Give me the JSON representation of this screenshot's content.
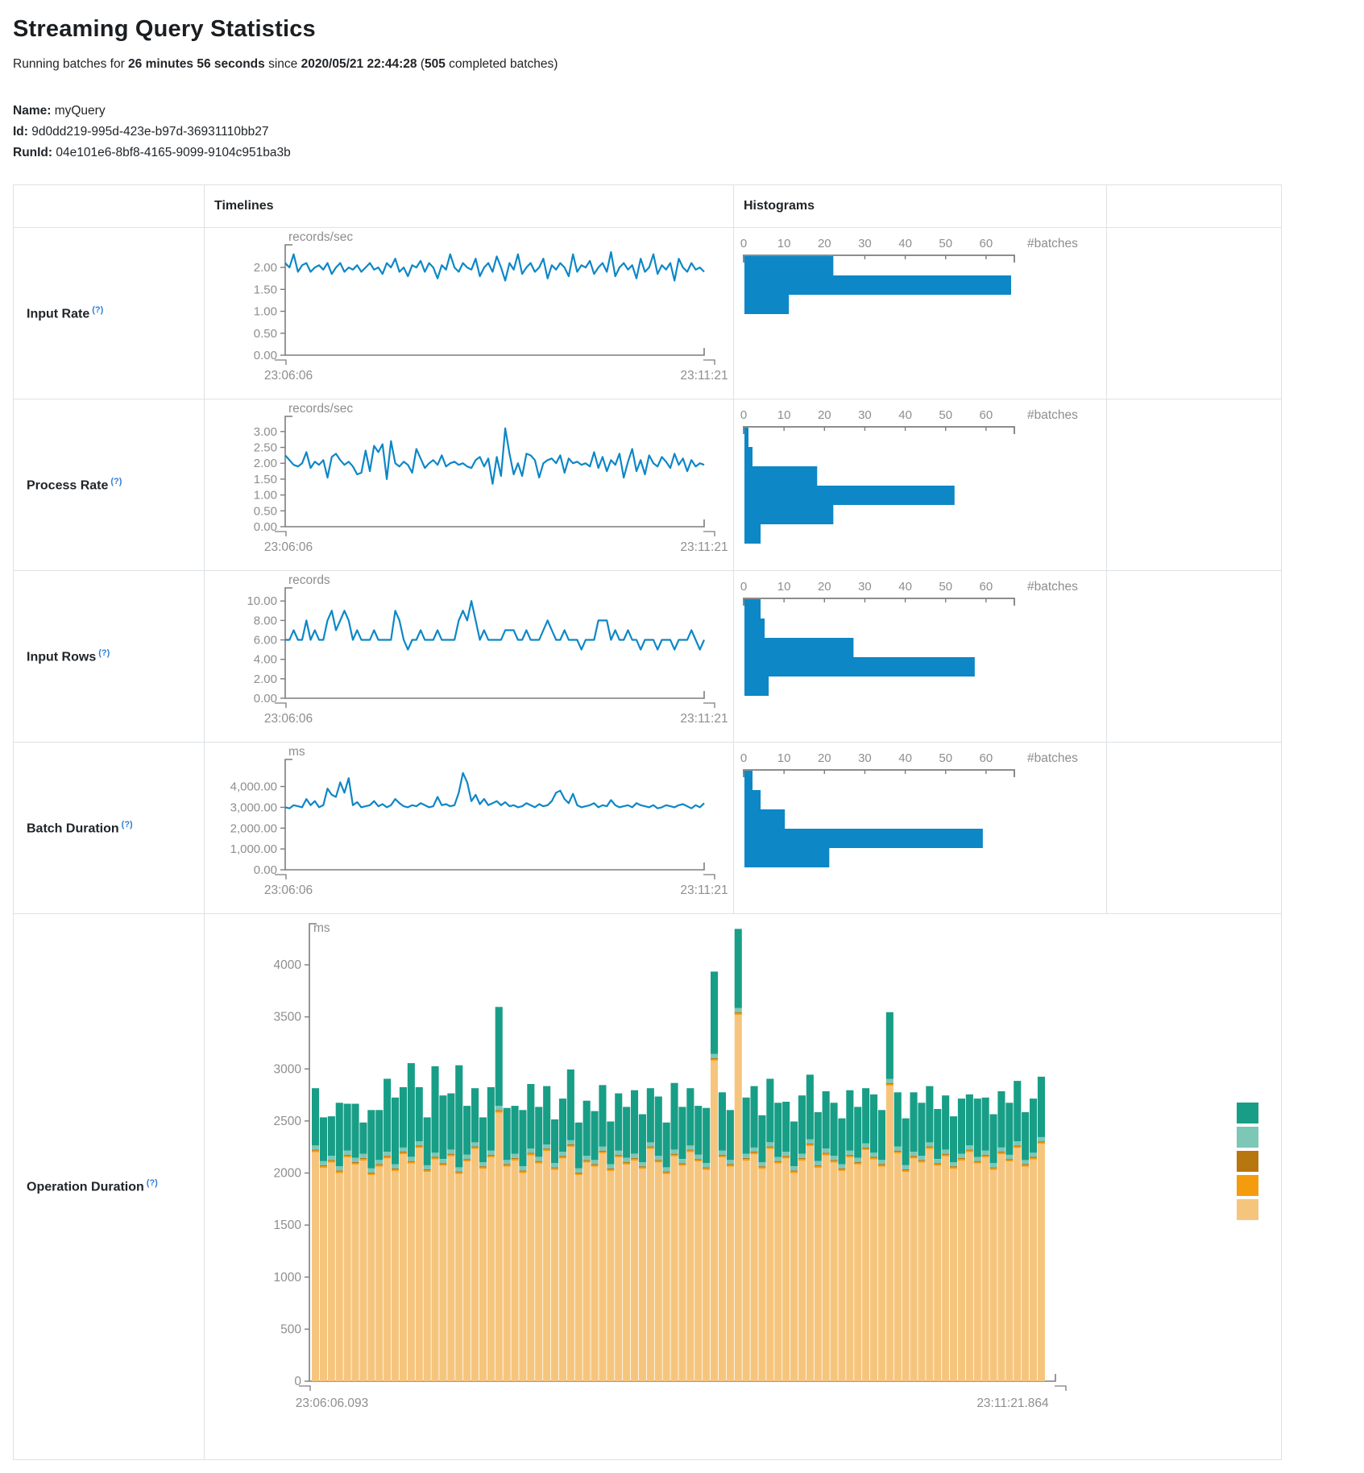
{
  "page": {
    "title": "Streaming Query Statistics",
    "running_prefix": "Running batches for ",
    "duration": "26 minutes 56 seconds",
    "since_text": " since ",
    "start_time": "2020/05/21 22:44:28",
    "batches_open": " (",
    "batches_count": "505",
    "batches_suffix": " completed batches)",
    "name_label": "Name:",
    "name_value": "myQuery",
    "id_label": "Id:",
    "id_value": "9d0dd219-995d-423e-b97d-36931110bb27",
    "runid_label": "RunId:",
    "runid_value": "04e101e6-8bf8-4165-9099-9104c951ba3b"
  },
  "table": {
    "header_timelines": "Timelines",
    "header_histograms": "Histograms",
    "help_marker": "(?)"
  },
  "colors": {
    "line_blue": "#0d87c6",
    "hist_blue": "#0d87c6",
    "axis": "#7d7d7d",
    "tick_text": "#8e8e8e",
    "border": "#dee2e6",
    "teal": "#189e86",
    "light_teal": "#7cc7b6",
    "dark_orange": "#b8760f",
    "orange": "#f49c0d",
    "tan": "#f6c57d"
  },
  "chart_data": [
    {
      "label": "Input Rate",
      "type": "line",
      "timeline": {
        "unit": "records/sec",
        "ymax": 2.35,
        "ytick_values": [
          0,
          0.5,
          1,
          1.5,
          2
        ],
        "ytick_labels": [
          "0.00",
          "0.50",
          "1.00",
          "1.50",
          "2.00"
        ],
        "x_start": "23:06:06",
        "x_end": "23:11:21",
        "values": [
          2.1,
          2.0,
          2.3,
          1.9,
          2.05,
          2.1,
          1.9,
          2.0,
          2.05,
          1.95,
          2.1,
          1.85,
          2.0,
          2.1,
          1.9,
          2.0,
          1.95,
          2.05,
          1.9,
          2.0,
          2.1,
          1.95,
          2.0,
          1.85,
          2.1,
          2.0,
          2.2,
          1.9,
          2.0,
          1.8,
          2.05,
          2.0,
          2.15,
          1.9,
          2.1,
          2.0,
          1.75,
          2.05,
          1.95,
          2.3,
          2.0,
          1.9,
          2.1,
          2.0,
          1.95,
          2.2,
          1.8,
          2.0,
          2.1,
          1.9,
          2.25,
          2.0,
          1.7,
          2.1,
          1.95,
          2.3,
          1.85,
          2.0,
          2.1,
          1.9,
          2.0,
          2.2,
          1.75,
          2.05,
          1.95,
          2.1,
          2.0,
          1.8,
          2.3,
          1.9,
          2.05,
          2.0,
          2.15,
          1.85,
          2.0,
          2.1,
          1.9,
          2.35,
          1.8,
          2.0,
          2.1,
          1.95,
          2.05,
          1.75,
          2.2,
          1.9,
          2.0,
          2.3,
          1.85,
          2.05,
          1.95,
          2.1,
          1.7,
          2.2,
          2.0,
          1.9,
          2.1,
          1.95,
          2.0,
          1.9
        ]
      },
      "histogram": {
        "xlabel": "#batches",
        "xmax": 67,
        "xticks": [
          0,
          10,
          20,
          30,
          40,
          50,
          60
        ],
        "counts": [
          22,
          66,
          11
        ]
      }
    },
    {
      "label": "Process Rate",
      "type": "line",
      "timeline": {
        "unit": "records/sec",
        "ymax": 3.25,
        "ytick_values": [
          0,
          0.5,
          1,
          1.5,
          2,
          2.5,
          3
        ],
        "ytick_labels": [
          "0.00",
          "0.50",
          "1.00",
          "1.50",
          "2.00",
          "2.50",
          "3.00"
        ],
        "x_start": "23:06:06",
        "x_end": "23:11:21",
        "values": [
          2.25,
          2.1,
          1.95,
          1.9,
          2.0,
          2.35,
          1.85,
          2.05,
          1.95,
          2.1,
          1.55,
          2.2,
          2.3,
          2.1,
          1.95,
          2.05,
          1.9,
          1.65,
          1.7,
          2.4,
          1.75,
          2.55,
          2.35,
          2.6,
          1.5,
          2.7,
          2.0,
          1.9,
          2.05,
          1.95,
          1.7,
          2.45,
          2.15,
          1.85,
          2.0,
          2.1,
          1.95,
          2.25,
          1.9,
          2.0,
          2.05,
          1.95,
          2.0,
          1.9,
          1.85,
          2.1,
          2.2,
          1.9,
          2.15,
          1.35,
          2.2,
          1.6,
          3.1,
          2.3,
          1.65,
          2.0,
          1.6,
          2.3,
          2.25,
          2.1,
          1.55,
          2.0,
          2.1,
          2.15,
          2.0,
          2.25,
          1.7,
          2.15,
          2.0,
          2.05,
          1.95,
          2.0,
          1.9,
          2.35,
          1.85,
          2.2,
          1.75,
          2.1,
          1.95,
          2.3,
          1.55,
          2.05,
          2.45,
          1.75,
          2.1,
          1.65,
          2.25,
          2.0,
          1.9,
          2.2,
          2.05,
          1.85,
          2.3,
          1.95,
          2.15,
          1.75,
          2.1,
          1.9,
          2.0,
          1.95
        ]
      },
      "histogram": {
        "xlabel": "#batches",
        "xmax": 67,
        "xticks": [
          0,
          10,
          20,
          30,
          40,
          50,
          60
        ],
        "counts": [
          1,
          2,
          18,
          52,
          22,
          4
        ]
      }
    },
    {
      "label": "Input Rows",
      "type": "line",
      "timeline": {
        "unit": "records",
        "ymax": 10.6,
        "ytick_values": [
          0,
          2,
          4,
          6,
          8,
          10
        ],
        "ytick_labels": [
          "0.00",
          "2.00",
          "4.00",
          "6.00",
          "8.00",
          "10.00"
        ],
        "x_start": "23:06:06",
        "x_end": "23:11:21",
        "values": [
          6,
          6,
          7,
          6,
          6,
          8,
          6,
          7,
          6,
          6,
          8,
          9,
          7,
          8,
          9,
          8,
          6,
          7,
          6,
          6,
          6,
          7,
          6,
          6,
          6,
          6,
          9,
          8,
          6,
          5,
          6,
          6,
          7,
          6,
          6,
          6,
          7,
          6,
          6,
          6,
          6,
          8,
          9,
          8,
          10,
          8,
          6,
          7,
          6,
          6,
          6,
          6,
          7,
          7,
          7,
          6,
          6,
          7,
          6,
          6,
          6,
          7,
          8,
          7,
          6,
          6,
          7,
          6,
          6,
          6,
          5,
          6,
          6,
          6,
          8,
          8,
          8,
          6,
          7,
          6,
          6,
          7,
          6,
          6,
          5,
          6,
          6,
          6,
          5,
          6,
          6,
          6,
          5,
          6,
          6,
          6,
          7,
          6,
          5,
          6
        ]
      },
      "histogram": {
        "xlabel": "#batches",
        "xmax": 67,
        "xticks": [
          0,
          10,
          20,
          30,
          40,
          50,
          60
        ],
        "counts": [
          4,
          5,
          27,
          57,
          6
        ]
      }
    },
    {
      "label": "Batch Duration",
      "type": "line",
      "timeline": {
        "unit": "ms",
        "ymax": 4950,
        "ytick_values": [
          0,
          1000,
          2000,
          3000,
          4000
        ],
        "ytick_labels": [
          "0.00",
          "1,000.00",
          "2,000.00",
          "3,000.00",
          "4,000.00"
        ],
        "x_start": "23:06:06",
        "x_end": "23:11:21",
        "values": [
          3000,
          2950,
          3100,
          3050,
          3000,
          3400,
          3100,
          3300,
          3000,
          3100,
          3900,
          3600,
          3500,
          4200,
          3700,
          4400,
          3100,
          3250,
          3000,
          3050,
          3100,
          3300,
          3050,
          3150,
          3000,
          3100,
          3400,
          3200,
          3050,
          3000,
          3100,
          3050,
          3200,
          3100,
          3000,
          3050,
          3500,
          3100,
          3150,
          3050,
          3100,
          3700,
          4650,
          4200,
          3300,
          3600,
          3150,
          3400,
          3100,
          3200,
          3300,
          3100,
          3250,
          3050,
          3100,
          3000,
          3050,
          3200,
          3100,
          3000,
          3150,
          3050,
          3100,
          3300,
          3700,
          3800,
          3400,
          3200,
          3650,
          3100,
          3000,
          3050,
          3100,
          3200,
          3000,
          3100,
          3050,
          3350,
          3100,
          3000,
          3050,
          3100,
          3000,
          3200,
          3100,
          3050,
          3000,
          3100,
          2950,
          3000,
          3100,
          3050,
          3000,
          3100,
          3150,
          3050,
          2950,
          3100,
          3000,
          3200
        ]
      },
      "histogram": {
        "xlabel": "#batches",
        "xmax": 67,
        "xticks": [
          0,
          10,
          20,
          30,
          40,
          50,
          60
        ],
        "counts": [
          2,
          4,
          10,
          59,
          21
        ]
      }
    },
    {
      "label": "Operation Duration",
      "type": "stacked-bar",
      "stacked": {
        "unit": "ms",
        "ytick_values": [
          0,
          500,
          1000,
          1500,
          2000,
          2500,
          3000,
          3500,
          4000
        ],
        "ytick_labels": [
          "0",
          "500",
          "1000",
          "1500",
          "2000",
          "2500",
          "3000",
          "3500",
          "4000"
        ],
        "x_start": "23:06:06.093",
        "x_end": "23:11:21.864",
        "series": [
          {
            "name": "segment-tan",
            "color_key": "tan",
            "values": [
              2200,
              2050,
              2100,
              2000,
              2150,
              2080,
              2120,
              1980,
              2060,
              2140,
              2020,
              2180,
              2090,
              2240,
              2010,
              2130,
              2070,
              2160,
              1990,
              2110,
              2230,
              2040,
              2150,
              2580,
              2060,
              2120,
              2000,
              2170,
              2090,
              2210,
              2030,
              2140,
              2250,
              1980,
              2100,
              2060,
              2190,
              2020,
              2150,
              2080,
              2120,
              2040,
              2230,
              2100,
              1990,
              2160,
              2070,
              2200,
              2110,
              2030,
              3080,
              2150,
              2060,
              3520,
              2120,
              2180,
              2040,
              2230,
              2090,
              2140,
              2000,
              2120,
              2260,
              2050,
              2170,
              2100,
              2020,
              2150,
              2080,
              2220,
              2130,
              2060,
              2840,
              2190,
              2010,
              2140,
              2100,
              2230,
              2070,
              2160,
              2040,
              2120,
              2200,
              2090,
              2150,
              2030,
              2180,
              2110,
              2240,
              2060,
              2130,
              2280
            ]
          },
          {
            "name": "segment-orange",
            "color_key": "orange",
            "value": 15
          },
          {
            "name": "segment-dark-orange",
            "color_key": "dark_orange",
            "value": 10
          },
          {
            "name": "segment-light-teal",
            "color_key": "light_teal",
            "value": 40
          },
          {
            "name": "segment-teal",
            "color_key": "teal",
            "values": [
              550,
              420,
              380,
              610,
              450,
              520,
              300,
              560,
              480,
              700,
              640,
              580,
              900,
              520,
              460,
              830,
              610,
              540,
              980,
              470,
              520,
              430,
              610,
              950,
              500,
              460,
              540,
              620,
              480,
              560,
              420,
              510,
              680,
              440,
              530,
              470,
              590,
              410,
              550,
              490,
              610,
              460,
              520,
              570,
              430,
              640,
              500,
              550,
              470,
              530,
              790,
              560,
              480,
              760,
              540,
              590,
              450,
              610,
              520,
              480,
              430,
              560,
              620,
              470,
              550,
              510,
              440,
              580,
              490,
              530,
              560,
              480,
              640,
              520,
              450,
              570,
              510,
              540,
              480,
              520,
              440,
              530,
              490,
              560,
              510,
              470,
              540,
              500,
              580,
              460,
              520,
              580
            ]
          }
        ],
        "legend_color_keys": [
          "teal",
          "light_teal",
          "dark_orange",
          "orange",
          "tan"
        ]
      }
    }
  ]
}
